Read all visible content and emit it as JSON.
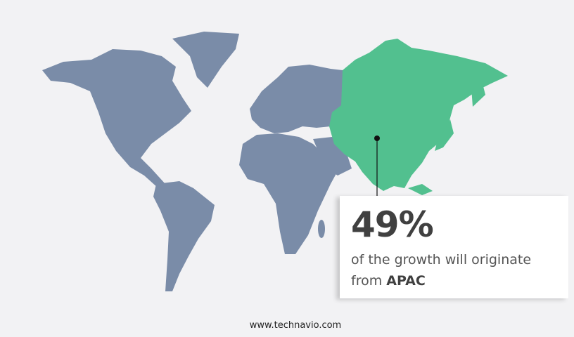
{
  "map": {
    "highlighted_region": "APAC",
    "colors": {
      "background": "#f2f2f4",
      "land": "#7a8ca8",
      "highlight": "#52c08f"
    }
  },
  "callout": {
    "percentage": "49%",
    "text": "of the growth will originate",
    "text_from": "from",
    "region": "APAC"
  },
  "footer": {
    "url": "www.technavio.com"
  }
}
